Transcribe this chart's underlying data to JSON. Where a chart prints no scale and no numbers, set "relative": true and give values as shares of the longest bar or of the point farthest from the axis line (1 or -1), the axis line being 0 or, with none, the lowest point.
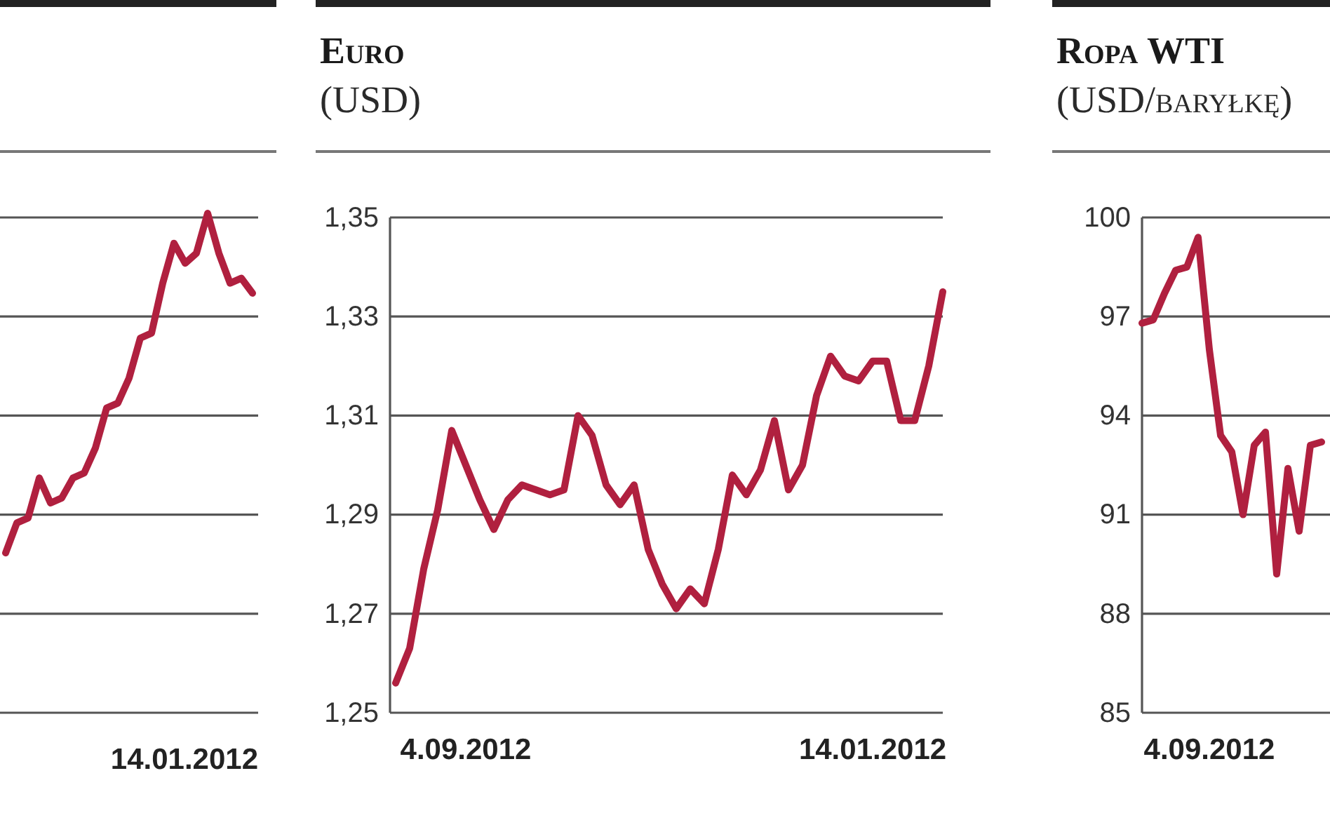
{
  "chart_data": [
    {
      "type": "line",
      "relative": true,
      "grid": true,
      "marker": "none",
      "line_style": "solid",
      "categories": [
        null,
        null,
        null,
        null,
        null,
        null,
        null,
        null,
        null,
        null,
        null,
        null,
        null,
        null,
        null,
        null,
        null,
        null,
        null,
        null,
        null,
        null,
        null
      ],
      "annotations": [
        "14.01.2012"
      ],
      "series": [
        {
          "color": "#b0203f",
          "values": [
            0.32,
            0.38,
            0.39,
            0.47,
            0.42,
            0.43,
            0.47,
            0.48,
            0.53,
            0.61,
            0.62,
            0.67,
            0.75,
            0.76,
            0.86,
            0.94,
            0.9,
            0.92,
            1,
            0.92,
            0.86,
            0.87,
            0.84
          ]
        }
      ]
    },
    {
      "type": "line",
      "title": "Euro",
      "subtitle": "(USD)",
      "grid": "y",
      "marker": "none",
      "line_style": "solid",
      "ylim": [
        1.25,
        1.35
      ],
      "yticks": [
        {
          "value": 1.25,
          "label": "1,25"
        },
        {
          "value": 1.27,
          "label": "1,27"
        },
        {
          "value": 1.29,
          "label": "1,29"
        },
        {
          "value": 1.31,
          "label": "1,31"
        },
        {
          "value": 1.33,
          "label": "1,33"
        },
        {
          "value": 1.35,
          "label": "1,35"
        }
      ],
      "categories": [
        null,
        null,
        null,
        null,
        null,
        "4.09.2012",
        null,
        null,
        null,
        null,
        null,
        null,
        null,
        null,
        null,
        null,
        null,
        null,
        null,
        null,
        null,
        null,
        null,
        null,
        null,
        null,
        null,
        null,
        null,
        null,
        null,
        null,
        null,
        null,
        "14.01.2012",
        null,
        null,
        null,
        null,
        null
      ],
      "series": [
        {
          "color": "#b0203f",
          "values": [
            1.256,
            1.263,
            1.279,
            1.291,
            1.307,
            1.3,
            1.293,
            1.287,
            1.293,
            1.296,
            1.295,
            1.294,
            1.295,
            1.31,
            1.306,
            1.296,
            1.292,
            1.296,
            1.283,
            1.276,
            1.271,
            1.275,
            1.272,
            1.283,
            1.298,
            1.294,
            1.299,
            1.309,
            1.295,
            1.3,
            1.314,
            1.322,
            1.318,
            1.317,
            1.321,
            1.321,
            1.309,
            1.309,
            1.32,
            1.335
          ]
        }
      ]
    },
    {
      "type": "line",
      "title": "Ropa WTI",
      "subtitle": "(USD/baryłkę)",
      "grid": "y",
      "marker": "none",
      "line_style": "solid",
      "ylim": [
        85,
        100
      ],
      "yticks": [
        85,
        88,
        91,
        94,
        97,
        100
      ],
      "categories": [
        null,
        null,
        null,
        null,
        null,
        null,
        "4.09.2012",
        null,
        null,
        null,
        null,
        null,
        null,
        null,
        null,
        null,
        null
      ],
      "series": [
        {
          "color": "#b0203f",
          "values": [
            96.8,
            96.9,
            97.7,
            98.4,
            98.5,
            99.4,
            96.0,
            93.4,
            92.9,
            91.0,
            93.1,
            93.5,
            89.2,
            92.4,
            90.5,
            93.1,
            93.2
          ]
        }
      ]
    }
  ]
}
